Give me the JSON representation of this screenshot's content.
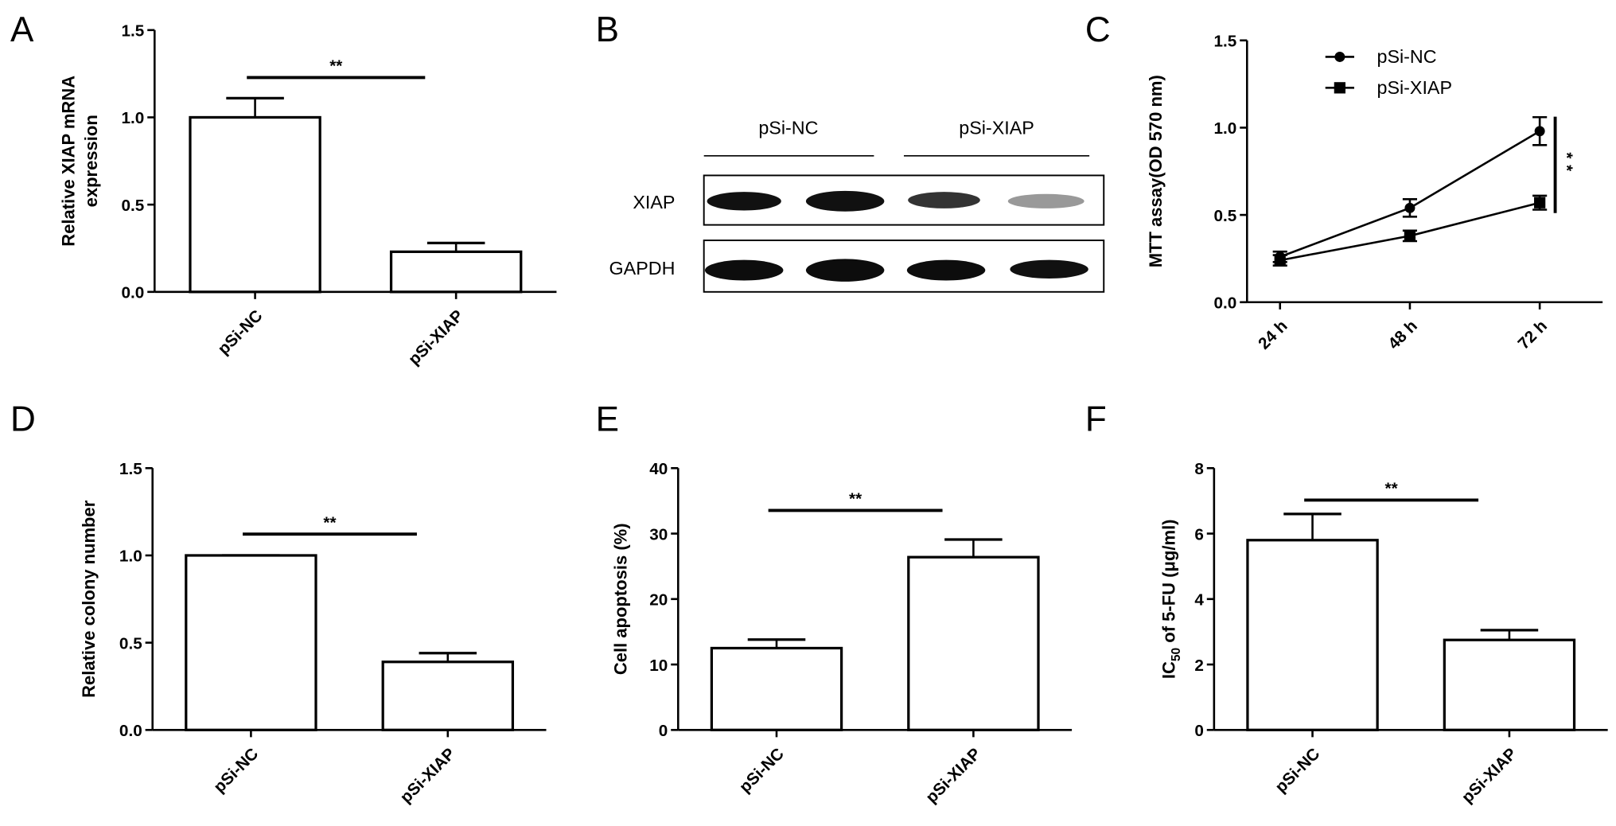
{
  "chart_data": [
    {
      "type": "bar",
      "panel_label": "A",
      "ylabel": [
        "Relative XIAP mRNA",
        "expression"
      ],
      "categories": [
        "pSi-NC",
        "pSi-XIAP"
      ],
      "values": [
        1.0,
        0.23
      ],
      "errors": [
        0.11,
        0.05
      ],
      "color": "#ffffff",
      "ylim": [
        0,
        1.5
      ],
      "yticks": [
        {
          "value": 0,
          "label": "0.0"
        },
        {
          "value": 0.5,
          "label": "0.5"
        },
        {
          "value": 1,
          "label": "1.0"
        },
        {
          "value": 1.5,
          "label": "1.5"
        }
      ],
      "annotation": "**"
    },
    {
      "type": "blot",
      "panel_label": "B",
      "groups": [
        "pSi-NC",
        "pSi-XIAP"
      ],
      "rows": [
        "XIAP",
        "GAPDH"
      ]
    },
    {
      "type": "line",
      "panel_label": "C",
      "ylabel": "MTT assay(OD 570 nm)",
      "categories": [
        "24 h",
        "48 h",
        "72 h"
      ],
      "series": [
        {
          "name": "pSi-NC",
          "color": "#000000",
          "marker": "circle",
          "values": [
            0.26,
            0.54,
            0.98
          ],
          "errors": [
            0.03,
            0.05,
            0.08
          ]
        },
        {
          "name": "pSi-XIAP",
          "color": "#000000",
          "marker": "square",
          "values": [
            0.24,
            0.38,
            0.57
          ],
          "errors": [
            0.03,
            0.03,
            0.04
          ]
        }
      ],
      "ylim": [
        0,
        1.5
      ],
      "yticks": [
        {
          "value": 0,
          "label": "0.0"
        },
        {
          "value": 0.5,
          "label": "0.5"
        },
        {
          "value": 1,
          "label": "1.0"
        },
        {
          "value": 1.5,
          "label": "1.5"
        }
      ],
      "annotation": "**",
      "legend": "upper left"
    },
    {
      "type": "bar",
      "panel_label": "D",
      "ylabel": "Relative colony number",
      "categories": [
        "pSi-NC",
        "pSi-XIAP"
      ],
      "values": [
        1.0,
        0.39
      ],
      "errors": [
        0,
        0.05
      ],
      "color": "#ffffff",
      "ylim": [
        0,
        1.5
      ],
      "yticks": [
        {
          "value": 0,
          "label": "0.0"
        },
        {
          "value": 0.5,
          "label": "0.5"
        },
        {
          "value": 1,
          "label": "1.0"
        },
        {
          "value": 1.5,
          "label": "1.5"
        }
      ],
      "annotation": "**"
    },
    {
      "type": "bar",
      "panel_label": "E",
      "ylabel": "Cell apoptosis (%)",
      "categories": [
        "pSi-NC",
        "pSi-XIAP"
      ],
      "values": [
        12.5,
        26.4
      ],
      "errors": [
        1.3,
        2.7
      ],
      "color": "#ffffff",
      "ylim": [
        0,
        40
      ],
      "yticks": [
        0,
        10,
        20,
        30,
        40
      ],
      "annotation": "**"
    },
    {
      "type": "bar",
      "panel_label": "F",
      "ylabel": {
        "text": "IC",
        "sub": "50",
        "rest": " of 5-FU (μg/ml)"
      },
      "categories": [
        "pSi-NC",
        "pSi-XIAP"
      ],
      "values": [
        5.8,
        2.75
      ],
      "errors": [
        0.8,
        0.3
      ],
      "color": "#ffffff",
      "ylim": [
        0,
        8
      ],
      "yticks": [
        0,
        2,
        4,
        6,
        8
      ],
      "annotation": "**"
    }
  ]
}
